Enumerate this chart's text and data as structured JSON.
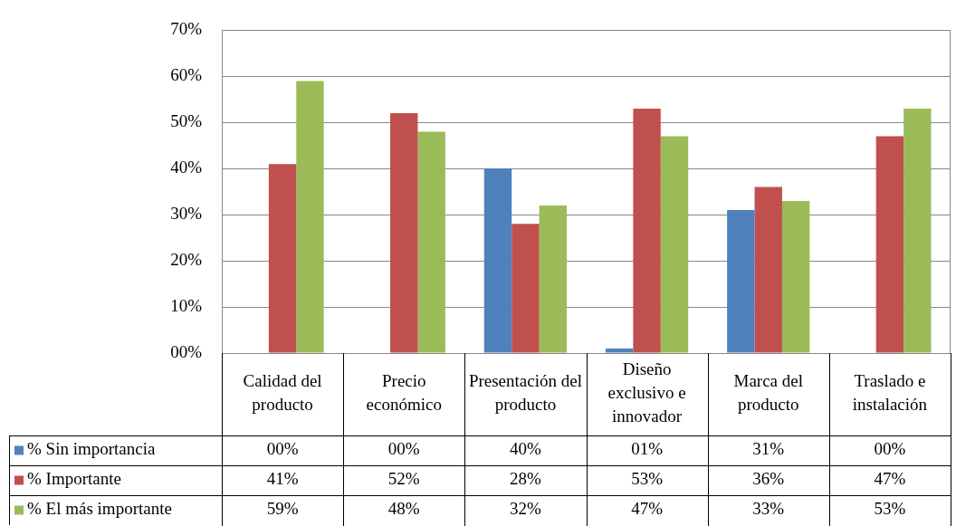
{
  "chart_data": {
    "type": "bar",
    "categories": [
      "Calidad del producto",
      "Precio económico",
      "Presentación del producto",
      "Diseño exclusivo e innovador",
      "Marca del producto",
      "Traslado e instalación"
    ],
    "series": [
      {
        "name": "% Sin importancia",
        "color": "#4f81bd",
        "values": [
          0,
          0,
          40,
          1,
          31,
          0
        ],
        "value_labels": [
          "00%",
          "00%",
          "40%",
          "01%",
          "31%",
          "00%"
        ]
      },
      {
        "name": "% Importante",
        "color": "#c0504d",
        "values": [
          41,
          52,
          28,
          53,
          36,
          47
        ],
        "value_labels": [
          "41%",
          "52%",
          "28%",
          "53%",
          "36%",
          "47%"
        ]
      },
      {
        "name": "% El más importante",
        "color": "#9bbb59",
        "values": [
          59,
          48,
          32,
          47,
          33,
          53
        ],
        "value_labels": [
          "59%",
          "48%",
          "32%",
          "47%",
          "33%",
          "53%"
        ]
      }
    ],
    "ylim": [
      0,
      70
    ],
    "yticks": [
      {
        "value": 0,
        "label": "00%"
      },
      {
        "value": 10,
        "label": "10%"
      },
      {
        "value": 20,
        "label": "20%"
      },
      {
        "value": 30,
        "label": "30%"
      },
      {
        "value": 40,
        "label": "40%"
      },
      {
        "value": 50,
        "label": "50%"
      },
      {
        "value": 60,
        "label": "60%"
      },
      {
        "value": 70,
        "label": "70%"
      }
    ],
    "grid": "y",
    "legend": "bottom"
  }
}
